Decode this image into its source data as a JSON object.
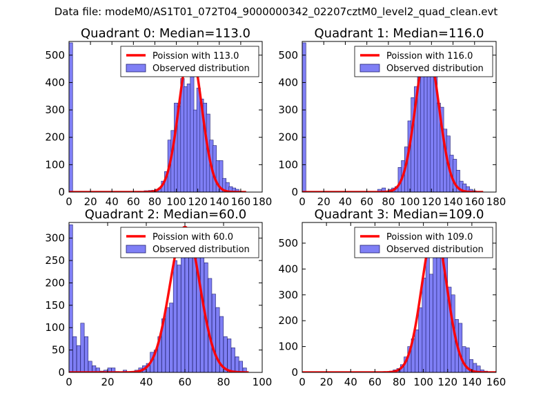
{
  "figure": {
    "title": "Data file: modeM0/AS1T01_072T04_9000000342_02207cztM0_level2_quad_clean.evt"
  },
  "colors": {
    "bar_fill": "#7f7ff5",
    "bar_edge": "#20206e",
    "curve": "#ff0000",
    "axis": "#000000"
  },
  "chart_data": [
    {
      "type": "bar",
      "title": "Quadrant 0: Median=113.0",
      "xlim": [
        0,
        180
      ],
      "ylim": [
        0,
        550
      ],
      "xticks": [
        0,
        20,
        40,
        60,
        80,
        100,
        120,
        140,
        160,
        180
      ],
      "yticks": [
        0,
        100,
        200,
        300,
        400,
        500
      ],
      "bin_width": 3.4,
      "bins": [
        [
          0,
          545
        ],
        [
          64,
          3
        ],
        [
          70,
          5
        ],
        [
          74,
          6
        ],
        [
          77,
          7
        ],
        [
          80,
          10
        ],
        [
          83,
          15
        ],
        [
          86,
          40
        ],
        [
          89,
          75
        ],
        [
          92,
          190
        ],
        [
          95,
          225
        ],
        [
          98,
          325
        ],
        [
          101,
          315
        ],
        [
          104,
          415
        ],
        [
          107,
          385
        ],
        [
          110,
          395
        ],
        [
          113,
          490
        ],
        [
          116,
          300
        ],
        [
          119,
          380
        ],
        [
          122,
          340
        ],
        [
          125,
          325
        ],
        [
          128,
          285
        ],
        [
          131,
          190
        ],
        [
          134,
          170
        ],
        [
          137,
          115
        ],
        [
          140,
          115
        ],
        [
          143,
          50
        ],
        [
          146,
          35
        ],
        [
          149,
          20
        ],
        [
          152,
          15
        ],
        [
          155,
          10
        ],
        [
          158,
          3
        ]
      ],
      "curve": {
        "label": "Poission with 113.0",
        "mean": 113.0,
        "peak": 520,
        "sigma": 10.6,
        "x_range": [
          0,
          165
        ]
      },
      "legend": {
        "curve_label": "Poission with 113.0",
        "bars_label": "Observed distribution",
        "placement": "top-right"
      }
    },
    {
      "type": "bar",
      "title": "Quadrant 1: Median=116.0",
      "xlim": [
        0,
        180
      ],
      "ylim": [
        0,
        550
      ],
      "xticks": [
        0,
        20,
        40,
        60,
        80,
        100,
        120,
        140,
        160,
        180
      ],
      "yticks": [
        0,
        100,
        200,
        300,
        400,
        500
      ],
      "bin_width": 3.4,
      "bins": [
        [
          0,
          545
        ],
        [
          70,
          10
        ],
        [
          74,
          15
        ],
        [
          80,
          10
        ],
        [
          83,
          15
        ],
        [
          86,
          20
        ],
        [
          89,
          90
        ],
        [
          92,
          115
        ],
        [
          95,
          165
        ],
        [
          98,
          260
        ],
        [
          101,
          345
        ],
        [
          104,
          385
        ],
        [
          107,
          440
        ],
        [
          110,
          430
        ],
        [
          113,
          480
        ],
        [
          116,
          500
        ],
        [
          119,
          480
        ],
        [
          122,
          520
        ],
        [
          125,
          325
        ],
        [
          128,
          310
        ],
        [
          131,
          230
        ],
        [
          134,
          205
        ],
        [
          137,
          135
        ],
        [
          140,
          120
        ],
        [
          143,
          80
        ],
        [
          146,
          40
        ],
        [
          149,
          30
        ],
        [
          152,
          20
        ],
        [
          155,
          10
        ],
        [
          158,
          5
        ]
      ],
      "curve": {
        "label": "Poission with 116.0",
        "mean": 116.0,
        "peak": 525,
        "sigma": 10.8,
        "x_range": [
          0,
          168
        ]
      },
      "legend": {
        "curve_label": "Poission with 116.0",
        "bars_label": "Observed distribution",
        "placement": "top-right"
      }
    },
    {
      "type": "bar",
      "title": "Quadrant 2: Median=60.0",
      "xlim": [
        0,
        100
      ],
      "ylim": [
        0,
        335
      ],
      "xticks": [
        0,
        20,
        40,
        60,
        80,
        100
      ],
      "yticks": [
        0,
        50,
        100,
        150,
        200,
        250,
        300
      ],
      "bin_width": 1.9,
      "bins": [
        [
          0,
          330
        ],
        [
          2,
          80
        ],
        [
          4,
          60
        ],
        [
          6,
          110
        ],
        [
          8,
          80
        ],
        [
          10,
          25
        ],
        [
          12,
          15
        ],
        [
          14,
          10
        ],
        [
          16,
          3
        ],
        [
          18,
          5
        ],
        [
          20,
          10
        ],
        [
          22,
          10
        ],
        [
          24,
          2
        ],
        [
          28,
          5
        ],
        [
          32,
          2
        ],
        [
          34,
          5
        ],
        [
          36,
          10
        ],
        [
          38,
          15
        ],
        [
          40,
          20
        ],
        [
          42,
          45
        ],
        [
          44,
          50
        ],
        [
          46,
          80
        ],
        [
          48,
          120
        ],
        [
          50,
          145
        ],
        [
          52,
          155
        ],
        [
          54,
          250
        ],
        [
          56,
          240
        ],
        [
          58,
          320
        ],
        [
          60,
          320
        ],
        [
          62,
          260
        ],
        [
          64,
          275
        ],
        [
          66,
          320
        ],
        [
          68,
          305
        ],
        [
          70,
          245
        ],
        [
          72,
          210
        ],
        [
          74,
          175
        ],
        [
          76,
          145
        ],
        [
          78,
          125
        ],
        [
          80,
          80
        ],
        [
          82,
          75
        ],
        [
          84,
          55
        ],
        [
          86,
          35
        ],
        [
          88,
          25
        ],
        [
          90,
          10
        ]
      ],
      "curve": {
        "label": "Poission with 60.0",
        "mean": 60.0,
        "peak": 325,
        "sigma": 7.7,
        "x_range": [
          0,
          93
        ]
      },
      "legend": {
        "curve_label": "Poission with 60.0",
        "bars_label": "Observed distribution",
        "placement": "top-right"
      }
    },
    {
      "type": "bar",
      "title": "Quadrant 3: Median=109.0",
      "xlim": [
        0,
        160
      ],
      "ylim": [
        0,
        580
      ],
      "xticks": [
        0,
        20,
        40,
        60,
        80,
        100,
        120,
        140,
        160
      ],
      "yticks": [
        0,
        100,
        200,
        300,
        400,
        500
      ],
      "bin_width": 3.0,
      "bins": [
        [
          66,
          2
        ],
        [
          72,
          5
        ],
        [
          75,
          10
        ],
        [
          78,
          15
        ],
        [
          81,
          30
        ],
        [
          84,
          60
        ],
        [
          87,
          100
        ],
        [
          90,
          130
        ],
        [
          93,
          165
        ],
        [
          96,
          250
        ],
        [
          99,
          365
        ],
        [
          102,
          480
        ],
        [
          105,
          380
        ],
        [
          108,
          480
        ],
        [
          111,
          500
        ],
        [
          114,
          480
        ],
        [
          117,
          500
        ],
        [
          120,
          330
        ],
        [
          123,
          300
        ],
        [
          126,
          205
        ],
        [
          129,
          190
        ],
        [
          132,
          100
        ],
        [
          135,
          95
        ],
        [
          138,
          50
        ],
        [
          141,
          35
        ],
        [
          144,
          25
        ],
        [
          147,
          10
        ],
        [
          150,
          5
        ]
      ],
      "curve": {
        "label": "Poission with 109.0",
        "mean": 109.0,
        "peak": 550,
        "sigma": 10.4,
        "x_range": [
          0,
          160
        ]
      },
      "legend": {
        "curve_label": "Poission with 109.0",
        "bars_label": "Observed distribution",
        "placement": "top-right"
      }
    }
  ]
}
